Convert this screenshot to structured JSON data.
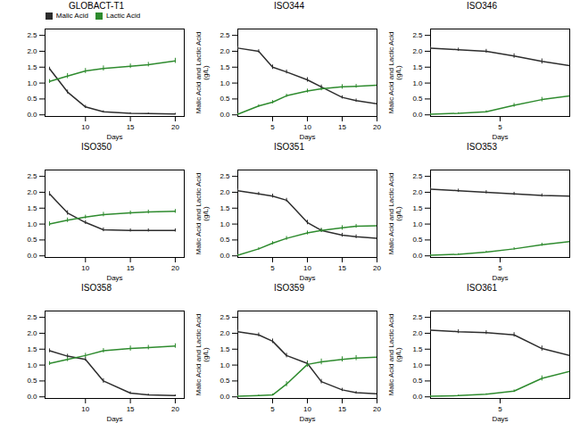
{
  "chart_data": [
    {
      "type": "line",
      "title": "GLOBACT-T1",
      "xlabel": "Days",
      "legend": "top",
      "xlim": [
        5.5,
        21
      ],
      "xticks": [
        10,
        15,
        20
      ],
      "ylim": [
        -0.05,
        2.7
      ],
      "yticks": [
        {
          "value": 0,
          "label": "0.0"
        },
        0.5,
        {
          "value": 1,
          "label": "1.0"
        },
        1.5,
        {
          "value": 2,
          "label": "2.0"
        },
        2.5
      ],
      "x": [
        6,
        8,
        10,
        12,
        15,
        17,
        20
      ],
      "series": [
        {
          "name": "Malic Acid",
          "color": "#2d2d2d",
          "values": [
            1.45,
            0.72,
            0.25,
            0.1,
            0.05,
            0.04,
            0.03
          ],
          "error": [
            0.05,
            0.06,
            0.05,
            0.03,
            0.02,
            0.02,
            0.02
          ]
        },
        {
          "name": "Lactic Acid",
          "color": "#2e8b2e",
          "values": [
            1.05,
            1.22,
            1.38,
            1.46,
            1.53,
            1.58,
            1.7
          ],
          "error": [
            0.06,
            0.08,
            0.08,
            0.08,
            0.07,
            0.07,
            0.08
          ]
        }
      ]
    },
    {
      "type": "line",
      "title": "ISO344",
      "xlabel": "Days",
      "ylabel": "Malic Acid and Lactic Acid\n(g/L)",
      "xlim": [
        0,
        20
      ],
      "xticks": [
        5,
        10,
        15,
        20
      ],
      "ylim": [
        -0.05,
        2.7
      ],
      "yticks": [
        {
          "value": 0,
          "label": "0.0"
        },
        0.5,
        {
          "value": 1,
          "label": "1.0"
        },
        1.5,
        {
          "value": 2,
          "label": "2.0"
        },
        2.5
      ],
      "x": [
        0,
        3,
        5,
        7,
        10,
        12,
        15,
        17,
        20
      ],
      "series": [
        {
          "name": "Malic Acid",
          "color": "#2d2d2d",
          "values": [
            2.1,
            2.0,
            1.5,
            1.35,
            1.1,
            0.88,
            0.55,
            0.45,
            0.35
          ],
          "error": [
            0.05,
            0.05,
            0.07,
            0.06,
            0.07,
            0.06,
            0.05,
            0.05,
            0.05
          ]
        },
        {
          "name": "Lactic Acid",
          "color": "#2e8b2e",
          "values": [
            0.02,
            0.28,
            0.4,
            0.6,
            0.75,
            0.82,
            0.88,
            0.9,
            0.93
          ],
          "error": [
            0.02,
            0.04,
            0.05,
            0.05,
            0.06,
            0.06,
            0.07,
            0.06,
            0.06
          ]
        }
      ]
    },
    {
      "type": "line",
      "title": "ISO346",
      "xlabel": "Days",
      "ylabel": "Malic Acid and Lactic Acid\n(g/L)",
      "xlim": [
        0,
        10
      ],
      "xticks": [
        5
      ],
      "ylim": [
        -0.05,
        2.7
      ],
      "yticks": [
        {
          "value": 0,
          "label": "0.0"
        },
        0.5,
        {
          "value": 1,
          "label": "1.0"
        },
        1.5,
        {
          "value": 2,
          "label": "2.0"
        },
        2.5
      ],
      "x": [
        0,
        2,
        4,
        6,
        8,
        10
      ],
      "series": [
        {
          "name": "Malic Acid",
          "color": "#2d2d2d",
          "values": [
            2.1,
            2.05,
            2.0,
            1.85,
            1.68,
            1.55
          ],
          "error": [
            0.05,
            0.05,
            0.06,
            0.07,
            0.08,
            0.08
          ]
        },
        {
          "name": "Lactic Acid",
          "color": "#2e8b2e",
          "values": [
            0.02,
            0.05,
            0.1,
            0.3,
            0.48,
            0.6
          ],
          "error": [
            0.02,
            0.02,
            0.03,
            0.06,
            0.07,
            0.08
          ]
        }
      ]
    },
    {
      "type": "line",
      "title": "ISO350",
      "xlabel": "Days",
      "xlim": [
        5.5,
        21
      ],
      "xticks": [
        10,
        15,
        20
      ],
      "ylim": [
        -0.05,
        2.7
      ],
      "yticks": [
        {
          "value": 0,
          "label": "0.0"
        },
        0.5,
        {
          "value": 1,
          "label": "1.0"
        },
        1.5,
        {
          "value": 2,
          "label": "2.0"
        },
        2.5
      ],
      "x": [
        6,
        8,
        10,
        12,
        15,
        17,
        20
      ],
      "series": [
        {
          "name": "Malic Acid",
          "color": "#2d2d2d",
          "values": [
            1.95,
            1.35,
            1.05,
            0.82,
            0.8,
            0.8,
            0.8
          ],
          "error": [
            0.07,
            0.07,
            0.06,
            0.06,
            0.05,
            0.05,
            0.05
          ]
        },
        {
          "name": "Lactic Acid",
          "color": "#2e8b2e",
          "values": [
            1.0,
            1.12,
            1.22,
            1.3,
            1.35,
            1.38,
            1.4
          ],
          "error": [
            0.07,
            0.07,
            0.06,
            0.07,
            0.06,
            0.06,
            0.06
          ]
        }
      ]
    },
    {
      "type": "line",
      "title": "ISO351",
      "xlabel": "Days",
      "ylabel": "Malic Acid and Lactic Acid\n(g/L)",
      "xlim": [
        0,
        20
      ],
      "xticks": [
        5,
        10,
        15,
        20
      ],
      "ylim": [
        -0.05,
        2.7
      ],
      "yticks": [
        {
          "value": 0,
          "label": "0.0"
        },
        0.5,
        {
          "value": 1,
          "label": "1.0"
        },
        1.5,
        {
          "value": 2,
          "label": "2.0"
        },
        2.5
      ],
      "x": [
        0,
        3,
        5,
        7,
        10,
        12,
        15,
        17,
        20
      ],
      "series": [
        {
          "name": "Malic Acid",
          "color": "#2d2d2d",
          "values": [
            2.05,
            1.95,
            1.88,
            1.75,
            1.05,
            0.8,
            0.65,
            0.6,
            0.55
          ],
          "error": [
            0.05,
            0.05,
            0.06,
            0.06,
            0.07,
            0.06,
            0.06,
            0.06,
            0.06
          ]
        },
        {
          "name": "Lactic Acid",
          "color": "#2e8b2e",
          "values": [
            0.02,
            0.22,
            0.4,
            0.55,
            0.72,
            0.8,
            0.88,
            0.93,
            0.95
          ],
          "error": [
            0.02,
            0.04,
            0.05,
            0.06,
            0.06,
            0.06,
            0.07,
            0.06,
            0.06
          ]
        }
      ]
    },
    {
      "type": "line",
      "title": "ISO353",
      "xlabel": "Days",
      "ylabel": "Malic Acid and Lactic Acid\n(g/L)",
      "xlim": [
        0,
        10
      ],
      "xticks": [
        5
      ],
      "ylim": [
        -0.05,
        2.7
      ],
      "yticks": [
        {
          "value": 0,
          "label": "0.0"
        },
        0.5,
        {
          "value": 1,
          "label": "1.0"
        },
        1.5,
        {
          "value": 2,
          "label": "2.0"
        },
        2.5
      ],
      "x": [
        0,
        2,
        4,
        6,
        8,
        10
      ],
      "series": [
        {
          "name": "Malic Acid",
          "color": "#2d2d2d",
          "values": [
            2.1,
            2.05,
            2.0,
            1.95,
            1.9,
            1.88
          ],
          "error": [
            0.05,
            0.05,
            0.05,
            0.05,
            0.05,
            0.05
          ]
        },
        {
          "name": "Lactic Acid",
          "color": "#2e8b2e",
          "values": [
            0.02,
            0.05,
            0.12,
            0.22,
            0.35,
            0.45
          ],
          "error": [
            0.02,
            0.02,
            0.03,
            0.04,
            0.05,
            0.06
          ]
        }
      ]
    },
    {
      "type": "line",
      "title": "ISO358",
      "xlabel": "Days",
      "xlim": [
        5.5,
        21
      ],
      "xticks": [
        10,
        15,
        20
      ],
      "ylim": [
        -0.05,
        2.7
      ],
      "yticks": [
        {
          "value": 0,
          "label": "0.0"
        },
        0.5,
        {
          "value": 1,
          "label": "1.0"
        },
        1.5,
        {
          "value": 2,
          "label": "2.0"
        },
        2.5
      ],
      "x": [
        6,
        8,
        10,
        12,
        15,
        17,
        20
      ],
      "series": [
        {
          "name": "Malic Acid",
          "color": "#2d2d2d",
          "values": [
            1.45,
            1.28,
            1.18,
            0.5,
            0.12,
            0.06,
            0.04
          ],
          "error": [
            0.06,
            0.06,
            0.06,
            0.07,
            0.04,
            0.03,
            0.02
          ]
        },
        {
          "name": "Lactic Acid",
          "color": "#2e8b2e",
          "values": [
            1.05,
            1.18,
            1.3,
            1.45,
            1.52,
            1.55,
            1.6
          ],
          "error": [
            0.06,
            0.07,
            0.07,
            0.07,
            0.08,
            0.07,
            0.07
          ]
        }
      ]
    },
    {
      "type": "line",
      "title": "ISO359",
      "xlabel": "Days",
      "ylabel": "Malic Acid and Lactic Acid\n(g/L)",
      "xlim": [
        0,
        20
      ],
      "xticks": [
        5,
        10,
        15,
        20
      ],
      "ylim": [
        -0.05,
        2.7
      ],
      "yticks": [
        {
          "value": 0,
          "label": "0.0"
        },
        0.5,
        {
          "value": 1,
          "label": "1.0"
        },
        1.5,
        {
          "value": 2,
          "label": "2.0"
        },
        2.5
      ],
      "x": [
        0,
        3,
        5,
        7,
        10,
        12,
        15,
        17,
        20
      ],
      "series": [
        {
          "name": "Malic Acid",
          "color": "#2d2d2d",
          "values": [
            2.05,
            1.95,
            1.75,
            1.3,
            1.05,
            0.48,
            0.22,
            0.13,
            0.1
          ],
          "error": [
            0.05,
            0.06,
            0.07,
            0.07,
            0.08,
            0.07,
            0.05,
            0.04,
            0.04
          ]
        },
        {
          "name": "Lactic Acid",
          "color": "#2e8b2e",
          "values": [
            0.02,
            0.04,
            0.06,
            0.4,
            1.02,
            1.1,
            1.18,
            1.22,
            1.25
          ],
          "error": [
            0.02,
            0.02,
            0.03,
            0.08,
            0.09,
            0.09,
            0.08,
            0.08,
            0.08
          ]
        }
      ]
    },
    {
      "type": "line",
      "title": "ISO361",
      "xlabel": "Days",
      "ylabel": "Malic Acid and Lactic Acid\n(g/L)",
      "xlim": [
        0,
        10
      ],
      "xticks": [
        5
      ],
      "ylim": [
        -0.05,
        2.7
      ],
      "yticks": [
        {
          "value": 0,
          "label": "0.0"
        },
        0.5,
        {
          "value": 1,
          "label": "1.0"
        },
        1.5,
        {
          "value": 2,
          "label": "2.0"
        },
        2.5
      ],
      "x": [
        0,
        2,
        4,
        6,
        8,
        10
      ],
      "series": [
        {
          "name": "Malic Acid",
          "color": "#2d2d2d",
          "values": [
            2.1,
            2.05,
            2.02,
            1.95,
            1.52,
            1.3
          ],
          "error": [
            0.05,
            0.06,
            0.06,
            0.07,
            0.08,
            0.08
          ]
        },
        {
          "name": "Lactic Acid",
          "color": "#2e8b2e",
          "values": [
            0.02,
            0.04,
            0.08,
            0.18,
            0.58,
            0.8
          ],
          "error": [
            0.02,
            0.02,
            0.02,
            0.04,
            0.08,
            0.09
          ]
        }
      ]
    }
  ]
}
